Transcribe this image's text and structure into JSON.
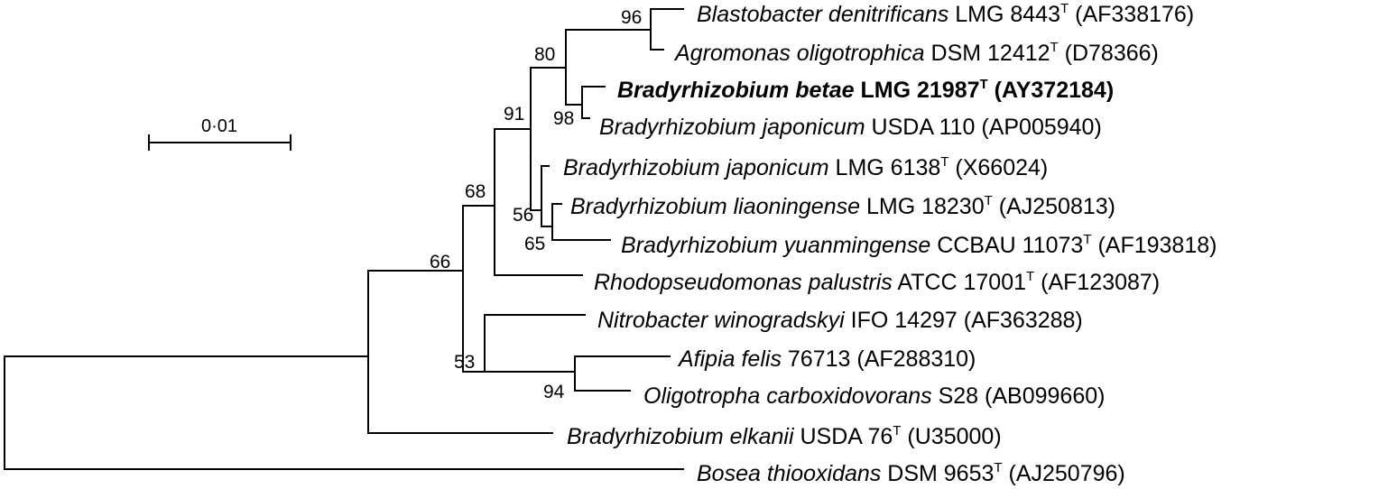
{
  "tree": {
    "scale_bar": {
      "label": "0·01",
      "value": 0.01
    },
    "bootstrap": {
      "n96": "96",
      "n80": "80",
      "n98": "98",
      "n91": "91",
      "n56": "56",
      "n65": "65",
      "n68": "68",
      "n66": "66",
      "n53": "53",
      "n94": "94"
    },
    "taxa": [
      {
        "id": "t1",
        "italic": "Blastobacter denitrificans",
        "strain": " LMG 8443",
        "type_strain": true,
        "accession": " (AF338176)",
        "bold": false
      },
      {
        "id": "t2",
        "italic": "Agromonas oligotrophica",
        "strain": " DSM 12412",
        "type_strain": true,
        "accession": " (D78366)",
        "bold": false
      },
      {
        "id": "t3",
        "italic": "Bradyrhizobium betae",
        "strain": " LMG 21987",
        "type_strain": true,
        "accession": " (AY372184)",
        "bold": true
      },
      {
        "id": "t4",
        "italic": "Bradyrhizobium japonicum",
        "strain": " USDA 110",
        "type_strain": false,
        "accession": " (AP005940)",
        "bold": false
      },
      {
        "id": "t5",
        "italic": "Bradyrhizobium japonicum",
        "strain": " LMG 6138",
        "type_strain": true,
        "accession": " (X66024)",
        "bold": false
      },
      {
        "id": "t6",
        "italic": "Bradyrhizobium liaoningense",
        "strain": " LMG 18230",
        "type_strain": true,
        "accession": " (AJ250813)",
        "bold": false
      },
      {
        "id": "t7",
        "italic": "Bradyrhizobium yuanmingense",
        "strain": " CCBAU 11073",
        "type_strain": true,
        "accession": " (AF193818)",
        "bold": false
      },
      {
        "id": "t8",
        "italic": "Rhodopseudomonas palustris",
        "strain": " ATCC 17001",
        "type_strain": true,
        "accession": " (AF123087)",
        "bold": false
      },
      {
        "id": "t9",
        "italic": "Nitrobacter winogradskyi",
        "strain": " IFO 14297",
        "type_strain": false,
        "accession": " (AF363288)",
        "bold": false
      },
      {
        "id": "t10",
        "italic": "Afipia felis",
        "strain": " 76713",
        "type_strain": false,
        "accession": " (AF288310)",
        "bold": false
      },
      {
        "id": "t11",
        "italic": "Oligotropha carboxidovorans",
        "strain": " S28",
        "type_strain": false,
        "accession": " (AB099660)",
        "bold": false
      },
      {
        "id": "t12",
        "italic": "Bradyrhizobium elkanii",
        "strain": " USDA 76",
        "type_strain": true,
        "accession": " (U35000)",
        "bold": false
      },
      {
        "id": "t13",
        "italic": "Bosea thiooxidans",
        "strain": " DSM 9653",
        "type_strain": true,
        "accession": " (AJ250796)",
        "bold": false
      }
    ],
    "type_strain_mark": "T"
  }
}
